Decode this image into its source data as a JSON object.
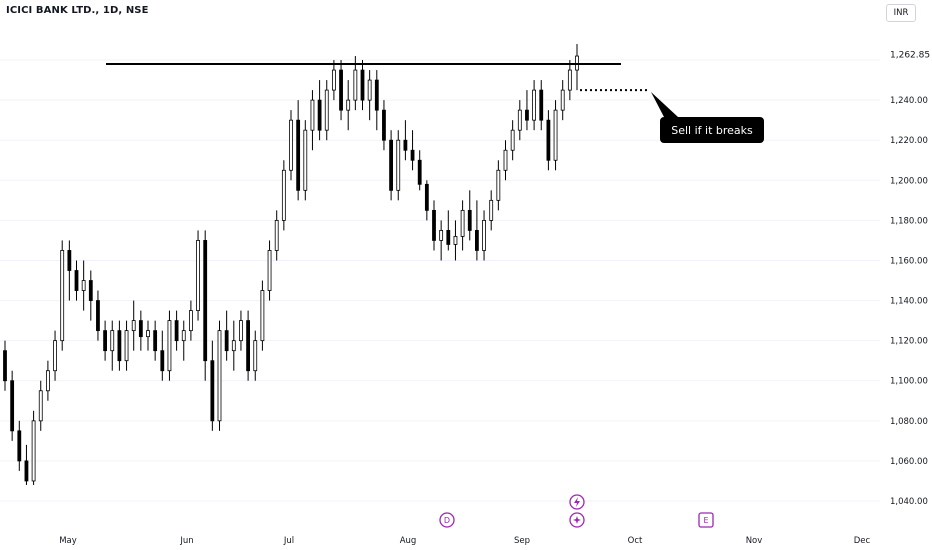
{
  "header": {
    "symbol_title": "ICICI BANK LTD., 1D, NSE",
    "currency": "INR"
  },
  "colors": {
    "up_candle_fill": "#ffffff",
    "down_candle_fill": "#000000",
    "candle_outline": "#000000",
    "grid": "#f0f3fa",
    "annotation_bg": "#000000",
    "annotation_text": "#ffffff",
    "marker_purple": "#9c27b0"
  },
  "chart_data": {
    "type": "candlestick",
    "interval": "1D",
    "exchange": "NSE",
    "y_ticks": [
      "1,040.00",
      "1,060.00",
      "1,080.00",
      "1,100.00",
      "1,120.00",
      "1,140.00",
      "1,160.00",
      "1,180.00",
      "1,200.00",
      "1,220.00",
      "1,240.00",
      "1,262.85"
    ],
    "ylim": [
      1030,
      1280
    ],
    "last_price": "1,262.85",
    "x_ticks": [
      "May",
      "Jun",
      "Jul",
      "Aug",
      "Sep",
      "Oct",
      "Nov",
      "Dec"
    ],
    "resistance_level": 1258,
    "breakdown_level": 1245,
    "annotation": "Sell if it breaks",
    "event_markers": [
      "D",
      "E"
    ],
    "candles": [
      [
        1115,
        1120,
        1095,
        1100
      ],
      [
        1100,
        1105,
        1070,
        1075
      ],
      [
        1075,
        1080,
        1055,
        1060
      ],
      [
        1060,
        1068,
        1048,
        1050
      ],
      [
        1050,
        1085,
        1048,
        1080
      ],
      [
        1080,
        1100,
        1075,
        1095
      ],
      [
        1095,
        1110,
        1090,
        1105
      ],
      [
        1105,
        1125,
        1100,
        1120
      ],
      [
        1120,
        1170,
        1115,
        1165
      ],
      [
        1165,
        1170,
        1140,
        1155
      ],
      [
        1155,
        1160,
        1140,
        1145
      ],
      [
        1145,
        1160,
        1135,
        1150
      ],
      [
        1150,
        1155,
        1130,
        1140
      ],
      [
        1140,
        1145,
        1120,
        1125
      ],
      [
        1125,
        1130,
        1110,
        1115
      ],
      [
        1115,
        1130,
        1105,
        1125
      ],
      [
        1125,
        1130,
        1105,
        1110
      ],
      [
        1110,
        1130,
        1105,
        1125
      ],
      [
        1125,
        1140,
        1115,
        1130
      ],
      [
        1130,
        1135,
        1115,
        1122
      ],
      [
        1122,
        1130,
        1115,
        1125
      ],
      [
        1125,
        1130,
        1110,
        1115
      ],
      [
        1115,
        1125,
        1100,
        1105
      ],
      [
        1105,
        1135,
        1100,
        1130
      ],
      [
        1130,
        1135,
        1115,
        1120
      ],
      [
        1120,
        1130,
        1110,
        1125
      ],
      [
        1125,
        1140,
        1120,
        1135
      ],
      [
        1135,
        1175,
        1130,
        1170
      ],
      [
        1170,
        1175,
        1100,
        1110
      ],
      [
        1110,
        1120,
        1075,
        1080
      ],
      [
        1080,
        1130,
        1075,
        1125
      ],
      [
        1125,
        1135,
        1110,
        1115
      ],
      [
        1115,
        1130,
        1105,
        1120
      ],
      [
        1120,
        1135,
        1115,
        1130
      ],
      [
        1130,
        1135,
        1100,
        1105
      ],
      [
        1105,
        1125,
        1100,
        1120
      ],
      [
        1120,
        1150,
        1115,
        1145
      ],
      [
        1145,
        1170,
        1140,
        1165
      ],
      [
        1165,
        1185,
        1160,
        1180
      ],
      [
        1180,
        1210,
        1175,
        1205
      ],
      [
        1205,
        1235,
        1200,
        1230
      ],
      [
        1230,
        1240,
        1190,
        1195
      ],
      [
        1195,
        1230,
        1190,
        1225
      ],
      [
        1225,
        1245,
        1215,
        1240
      ],
      [
        1240,
        1250,
        1220,
        1225
      ],
      [
        1225,
        1250,
        1220,
        1245
      ],
      [
        1245,
        1260,
        1240,
        1255
      ],
      [
        1255,
        1260,
        1230,
        1235
      ],
      [
        1235,
        1250,
        1225,
        1240
      ],
      [
        1240,
        1262,
        1235,
        1255
      ],
      [
        1255,
        1260,
        1235,
        1240
      ],
      [
        1240,
        1255,
        1230,
        1250
      ],
      [
        1250,
        1255,
        1225,
        1235
      ],
      [
        1235,
        1240,
        1215,
        1220
      ],
      [
        1220,
        1225,
        1190,
        1195
      ],
      [
        1195,
        1225,
        1190,
        1220
      ],
      [
        1220,
        1230,
        1210,
        1215
      ],
      [
        1215,
        1225,
        1205,
        1210
      ],
      [
        1210,
        1215,
        1195,
        1198
      ],
      [
        1198,
        1200,
        1180,
        1185
      ],
      [
        1185,
        1190,
        1165,
        1170
      ],
      [
        1170,
        1180,
        1160,
        1175
      ],
      [
        1175,
        1185,
        1165,
        1168
      ],
      [
        1168,
        1180,
        1160,
        1172
      ],
      [
        1172,
        1190,
        1165,
        1185
      ],
      [
        1185,
        1195,
        1170,
        1175
      ],
      [
        1175,
        1190,
        1160,
        1165
      ],
      [
        1165,
        1185,
        1160,
        1180
      ],
      [
        1180,
        1195,
        1175,
        1190
      ],
      [
        1190,
        1210,
        1185,
        1205
      ],
      [
        1205,
        1220,
        1200,
        1215
      ],
      [
        1215,
        1230,
        1210,
        1225
      ],
      [
        1225,
        1240,
        1220,
        1235
      ],
      [
        1235,
        1245,
        1225,
        1230
      ],
      [
        1230,
        1250,
        1225,
        1245
      ],
      [
        1245,
        1250,
        1225,
        1230
      ],
      [
        1230,
        1235,
        1205,
        1210
      ],
      [
        1210,
        1240,
        1205,
        1235
      ],
      [
        1235,
        1250,
        1230,
        1245
      ],
      [
        1245,
        1260,
        1240,
        1255
      ],
      [
        1255,
        1268,
        1245,
        1262
      ]
    ]
  }
}
